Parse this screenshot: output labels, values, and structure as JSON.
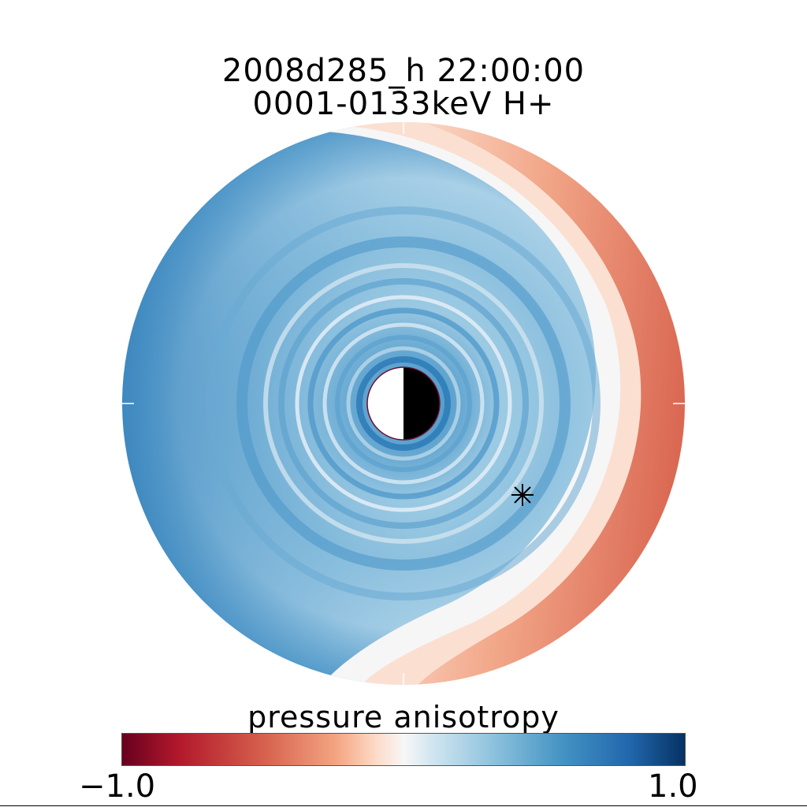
{
  "chart_data": {
    "type": "heatmap",
    "projection": "polar equatorial map",
    "title": "2008d285_h   22:00:00",
    "subtitle": "0001-0133keV H+",
    "colorbar": {
      "label": "pressure anisotropy",
      "min": -1.0,
      "max": 1.0,
      "min_label": "−1.0",
      "max_label": "1.0",
      "colormap": "diverging red-white-blue",
      "low_color": "#67001f",
      "mid_color": "#f7f7f7",
      "high_color": "#053061"
    },
    "field_description": "positive anisotropy (blue) over most of the disk, negative (red) on the dusk/right side",
    "earth_symbol": "half white / half black circle",
    "marker_symbol": "*"
  }
}
